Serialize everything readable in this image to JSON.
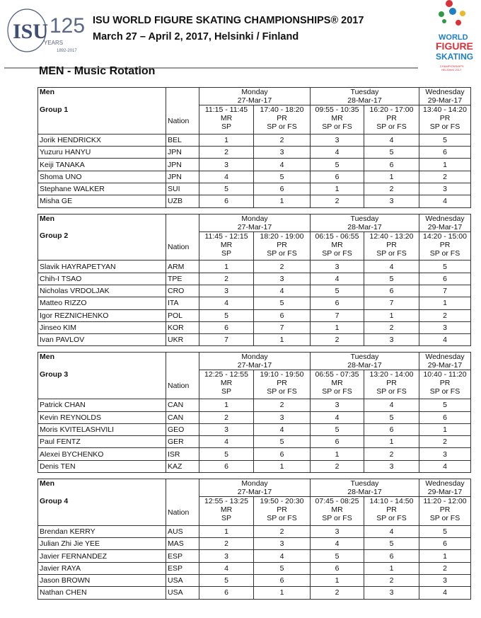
{
  "header": {
    "logo_text": "ISU 125 YEARS 1892-2017",
    "champ_logo_text": "World Figure Skating Championships Helsinki 2017",
    "title": "ISU WORLD FIGURE SKATING CHAMPIONSHIPS® 2017",
    "subtitle": "March 27 – April 2, 2017, Helsinki / Finland",
    "section_title": "MEN - Music Rotation"
  },
  "columns": {
    "category": "Men",
    "nation": "Nation",
    "days": [
      {
        "day": "Monday",
        "date": "27-Mar-17"
      },
      {
        "day": "Tuesday",
        "date": "28-Mar-17"
      },
      {
        "day": "Wednesday",
        "date": "29-Mar-17"
      }
    ],
    "types": [
      [
        "MR",
        "SP"
      ],
      [
        "PR",
        "SP or FS"
      ],
      [
        "MR",
        "SP or FS"
      ],
      [
        "PR",
        "SP or FS"
      ],
      [
        "PR",
        "SP or FS"
      ]
    ]
  },
  "groups": [
    {
      "name": "Group 1",
      "times": [
        "11:15 - 11:45",
        "17:40 - 18:20",
        "09:55 - 10:35",
        "16:20 - 17:00",
        "13:40 - 14:20"
      ],
      "skaters": [
        {
          "name": "Jorik HENDRICKX",
          "nation": "BEL",
          "order": [
            1,
            2,
            3,
            4,
            5
          ]
        },
        {
          "name": "Yuzuru HANYU",
          "nation": "JPN",
          "order": [
            2,
            3,
            4,
            5,
            6
          ]
        },
        {
          "name": "Keiji TANAKA",
          "nation": "JPN",
          "order": [
            3,
            4,
            5,
            6,
            1
          ]
        },
        {
          "name": "Shoma UNO",
          "nation": "JPN",
          "order": [
            4,
            5,
            6,
            1,
            2
          ]
        },
        {
          "name": "Stephane WALKER",
          "nation": "SUI",
          "order": [
            5,
            6,
            1,
            2,
            3
          ]
        },
        {
          "name": "Misha GE",
          "nation": "UZB",
          "order": [
            6,
            1,
            2,
            3,
            4
          ]
        }
      ]
    },
    {
      "name": "Group 2",
      "times": [
        "11:45 - 12:15",
        "18:20 - 19:00",
        "06:15 - 06:55",
        "12:40 - 13:20",
        "14:20 - 15:00"
      ],
      "skaters": [
        {
          "name": "Slavik HAYRAPETYAN",
          "nation": "ARM",
          "order": [
            1,
            2,
            3,
            4,
            5
          ]
        },
        {
          "name": "Chih-I TSAO",
          "nation": "TPE",
          "order": [
            2,
            3,
            4,
            5,
            6
          ]
        },
        {
          "name": "Nicholas VRDOLJAK",
          "nation": "CRO",
          "order": [
            3,
            4,
            5,
            6,
            7
          ]
        },
        {
          "name": "Matteo RIZZO",
          "nation": "ITA",
          "order": [
            4,
            5,
            6,
            7,
            1
          ]
        },
        {
          "name": "Igor REZNICHENKO",
          "nation": "POL",
          "order": [
            5,
            6,
            7,
            1,
            2
          ]
        },
        {
          "name": "Jinseo KIM",
          "nation": "KOR",
          "order": [
            6,
            7,
            1,
            2,
            3
          ]
        },
        {
          "name": "Ivan PAVLOV",
          "nation": "UKR",
          "order": [
            7,
            1,
            2,
            3,
            4
          ]
        }
      ]
    },
    {
      "name": "Group 3",
      "times": [
        "12:25 - 12:55",
        "19:10 - 19:50",
        "06:55 - 07:35",
        "13:20 - 14:00",
        "10:40 - 11:20"
      ],
      "skaters": [
        {
          "name": "Patrick CHAN",
          "nation": "CAN",
          "order": [
            1,
            2,
            3,
            4,
            5
          ]
        },
        {
          "name": "Kevin REYNOLDS",
          "nation": "CAN",
          "order": [
            2,
            3,
            4,
            5,
            6
          ]
        },
        {
          "name": "Moris KVITELASHVILI",
          "nation": "GEO",
          "order": [
            3,
            4,
            5,
            6,
            1
          ]
        },
        {
          "name": "Paul FENTZ",
          "nation": "GER",
          "order": [
            4,
            5,
            6,
            1,
            2
          ]
        },
        {
          "name": "Alexei BYCHENKO",
          "nation": "ISR",
          "order": [
            5,
            6,
            1,
            2,
            3
          ]
        },
        {
          "name": "Denis TEN",
          "nation": "KAZ",
          "order": [
            6,
            1,
            2,
            3,
            4
          ]
        }
      ]
    },
    {
      "name": "Group 4",
      "times": [
        "12:55 - 13:25",
        "19:50 - 20:30",
        "07:45 - 08:25",
        "14:10 - 14:50",
        "11:20 - 12:00"
      ],
      "skaters": [
        {
          "name": "Brendan KERRY",
          "nation": "AUS",
          "order": [
            1,
            2,
            3,
            4,
            5
          ]
        },
        {
          "name": "Julian Zhi Jie YEE",
          "nation": "MAS",
          "order": [
            2,
            3,
            4,
            5,
            6
          ]
        },
        {
          "name": "Javier FERNANDEZ",
          "nation": "ESP",
          "order": [
            3,
            4,
            5,
            6,
            1
          ]
        },
        {
          "name": "Javier RAYA",
          "nation": "ESP",
          "order": [
            4,
            5,
            6,
            1,
            2
          ]
        },
        {
          "name": "Jason BROWN",
          "nation": "USA",
          "order": [
            5,
            6,
            1,
            2,
            3
          ]
        },
        {
          "name": "Nathan CHEN",
          "nation": "USA",
          "order": [
            6,
            1,
            2,
            3,
            4
          ]
        }
      ]
    }
  ]
}
